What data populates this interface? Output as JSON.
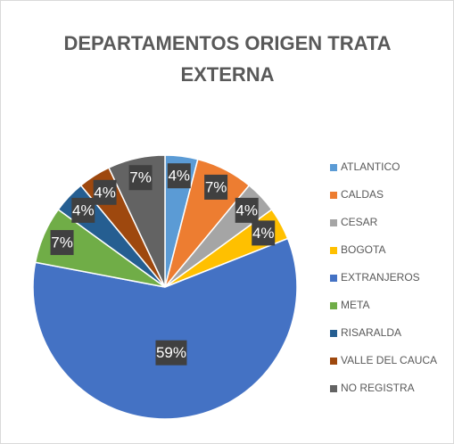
{
  "chart_data": {
    "type": "pie",
    "title": "DEPARTAMENTOS ORIGEN TRATA EXTERNA",
    "categories": [
      "ATLANTICO",
      "CALDAS",
      "CESAR",
      "BOGOTA",
      "EXTRANJEROS",
      "META",
      "RISARALDA",
      "VALLE DEL CAUCA",
      "NO REGISTRA"
    ],
    "values": [
      4,
      7,
      4,
      4,
      59,
      7,
      4,
      4,
      7
    ],
    "value_labels": [
      "4%",
      "7%",
      "4%",
      "4%",
      "59%",
      "7%",
      "4%",
      "4%",
      "7%"
    ],
    "colors": [
      "#5b9bd5",
      "#ed7d31",
      "#a5a5a5",
      "#ffc000",
      "#4472c4",
      "#70ad47",
      "#255e91",
      "#9e480e",
      "#636363"
    ],
    "legend": "right"
  }
}
